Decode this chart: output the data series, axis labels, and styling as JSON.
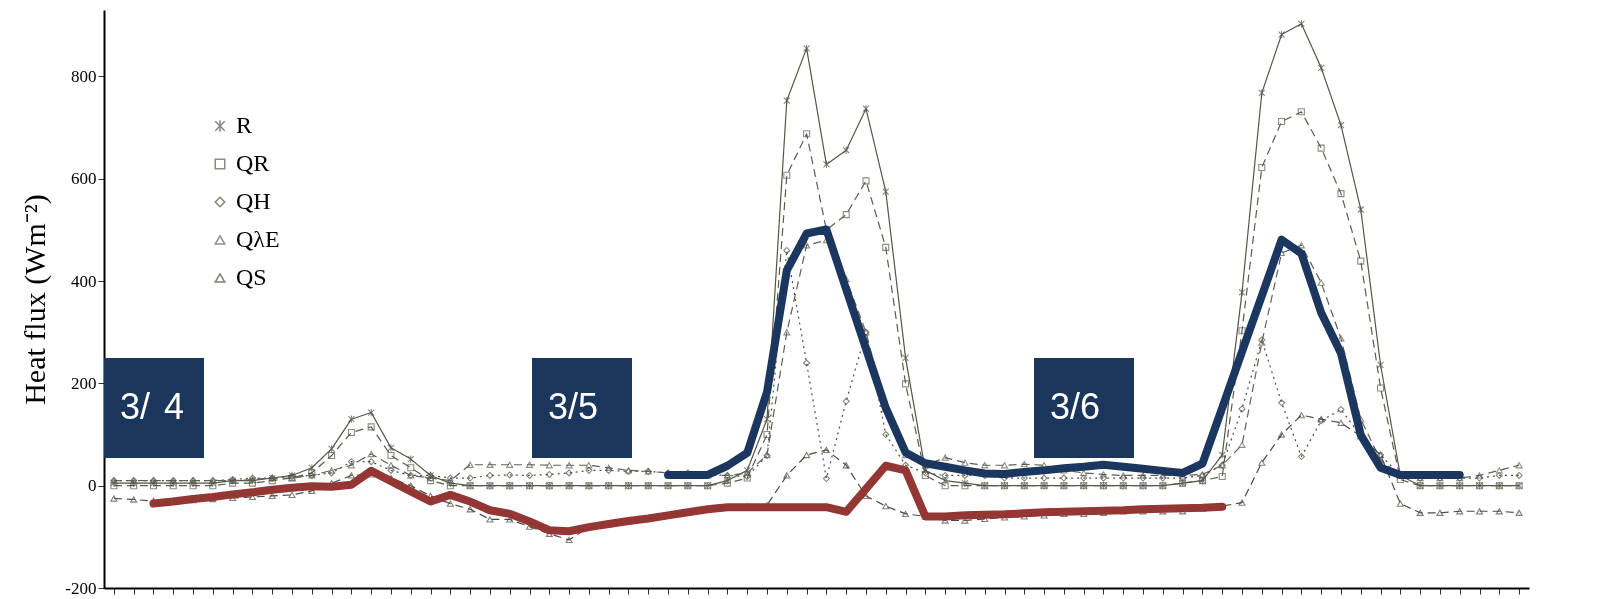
{
  "chart_data": {
    "type": "line",
    "ylabel": "Heat flux (Wm⁻²)",
    "categories": [
      null,
      null,
      null,
      null,
      null,
      null,
      null,
      null,
      null,
      null,
      null,
      null,
      null,
      null,
      null,
      null,
      null,
      null,
      null,
      null,
      null,
      null,
      null,
      null,
      null,
      null,
      null,
      null,
      null,
      null,
      null,
      null,
      null,
      null,
      null,
      null,
      null,
      null,
      null,
      null,
      null,
      null,
      null,
      null,
      null,
      null,
      null,
      null,
      null,
      null,
      null,
      null,
      null,
      null,
      null,
      null,
      null,
      null,
      null,
      null,
      null,
      null,
      null,
      null,
      null,
      null,
      null,
      null,
      null,
      null,
      null,
      null
    ],
    "series": [
      {
        "name": "R",
        "color": "#55554a",
        "marker": "cross",
        "line_style": "solid",
        "values": [
          5,
          5,
          5,
          5,
          5,
          5,
          10,
          10,
          15,
          20,
          35,
          72,
          130,
          143,
          74,
          52,
          20,
          5,
          0,
          0,
          0,
          0,
          0,
          0,
          0,
          0,
          0,
          0,
          0,
          0,
          0,
          10,
          30,
          130,
          753,
          855,
          628,
          656,
          737,
          575,
          250,
          30,
          10,
          5,
          0,
          0,
          0,
          0,
          0,
          0,
          0,
          0,
          0,
          0,
          5,
          10,
          60,
          378,
          768,
          882,
          903,
          817,
          705,
          540,
          236,
          20,
          0,
          0,
          0,
          0,
          0,
          0
        ]
      },
      {
        "name": "QR",
        "color": "#5b5b4e",
        "marker": "square",
        "line_style": "dashed",
        "values": [
          0,
          0,
          0,
          0,
          0,
          0,
          5,
          5,
          10,
          15,
          25,
          59,
          104,
          115,
          59,
          35,
          10,
          0,
          0,
          0,
          0,
          0,
          0,
          0,
          0,
          0,
          0,
          0,
          0,
          0,
          0,
          5,
          15,
          100,
          607,
          688,
          500,
          530,
          596,
          466,
          199,
          20,
          0,
          0,
          0,
          0,
          0,
          0,
          0,
          0,
          0,
          0,
          0,
          0,
          5,
          10,
          18,
          303,
          622,
          712,
          731,
          660,
          571,
          439,
          191,
          12,
          0,
          0,
          0,
          0,
          0,
          0
        ]
      },
      {
        "name": "QH",
        "color": "#4f4f45",
        "marker": "diamond",
        "line_style": "dotted",
        "values": [
          10,
          10,
          10,
          10,
          10,
          10,
          12,
          15,
          15,
          18,
          20,
          25,
          47,
          47,
          30,
          20,
          20,
          15,
          15,
          20,
          21,
          20,
          22,
          25,
          30,
          30,
          28,
          28,
          25,
          25,
          22,
          20,
          18,
          59,
          460,
          240,
          14,
          165,
          300,
          100,
          40,
          25,
          20,
          20,
          20,
          15,
          15,
          15,
          15,
          15,
          15,
          15,
          15,
          15,
          15,
          20,
          40,
          150,
          285,
          162,
          57,
          127,
          149,
          97,
          60,
          20,
          15,
          15,
          15,
          15,
          20,
          20
        ]
      },
      {
        "name": "QλE",
        "color": "#606054",
        "marker": "triangle",
        "line_style": "dashed",
        "values": [
          10,
          10,
          10,
          10,
          10,
          10,
          10,
          12,
          15,
          15,
          20,
          30,
          40,
          62,
          40,
          20,
          15,
          10,
          41,
          41,
          41,
          41,
          40,
          40,
          40,
          35,
          30,
          28,
          25,
          22,
          20,
          20,
          25,
          60,
          300,
          470,
          480,
          404,
          300,
          150,
          60,
          40,
          55,
          45,
          40,
          40,
          42,
          40,
          30,
          25,
          22,
          20,
          20,
          20,
          20,
          22,
          40,
          80,
          280,
          455,
          470,
          397,
          288,
          130,
          50,
          20,
          15,
          15,
          15,
          20,
          30,
          40
        ]
      },
      {
        "name": "QS",
        "color": "#4a4a40",
        "marker": "triangle",
        "line_style": "dashed",
        "values": [
          -25,
          -27,
          -30,
          -30,
          -28,
          -26,
          -24,
          -22,
          -20,
          -18,
          -10,
          5,
          20,
          22,
          15,
          0,
          -20,
          -35,
          -46,
          -66,
          -66,
          -80,
          -94,
          -106,
          -81,
          -75,
          -70,
          -65,
          -58,
          -52,
          -47,
          -43,
          -40,
          -38,
          20,
          60,
          70,
          40,
          -20,
          -40,
          -55,
          -60,
          -68,
          -68,
          -65,
          -62,
          -60,
          -58,
          -55,
          -55,
          -53,
          -50,
          -50,
          -50,
          -50,
          -45,
          -40,
          -33,
          45,
          100,
          138,
          130,
          123,
          97,
          60,
          -35,
          -53,
          -53,
          -50,
          -50,
          -50,
          -53
        ]
      },
      {
        "color": "#1b375f",
        "line_style": "solid",
        "values": [
          null,
          null,
          null,
          null,
          null,
          null,
          null,
          null,
          null,
          null,
          null,
          null,
          null,
          null,
          null,
          null,
          null,
          null,
          null,
          null,
          null,
          null,
          null,
          null,
          null,
          null,
          null,
          null,
          21,
          21,
          21,
          39,
          64,
          183,
          421,
          493,
          501,
          384,
          268,
          152,
          65,
          44,
          37,
          30,
          24,
          23,
          27,
          30,
          34,
          37,
          41,
          37,
          33,
          29,
          25,
          43,
          152,
          262,
          371,
          481,
          454,
          338,
          259,
          99,
          35,
          21,
          21,
          21,
          21,
          null,
          null,
          null
        ]
      },
      {
        "color": "#943634",
        "line_style": "solid",
        "values": [
          null,
          null,
          -35,
          -31,
          -26,
          -22,
          -17,
          -13,
          -8,
          -4,
          -1,
          -2,
          2,
          29,
          9,
          -11,
          -31,
          -18,
          -31,
          -48,
          -55,
          -70,
          -87,
          -89,
          -81,
          -75,
          -69,
          -64,
          -58,
          -52,
          -46,
          -42,
          -42,
          -42,
          -42,
          -42,
          -42,
          -51,
          -6,
          39,
          30,
          -60,
          -60,
          -58,
          -57,
          -56,
          -54,
          -52,
          -51,
          -50,
          -49,
          -48,
          -46,
          -45,
          -44,
          -43,
          -41,
          null,
          null,
          null,
          null,
          null,
          null,
          null,
          null,
          null,
          null,
          null,
          null,
          null,
          null,
          null
        ]
      }
    ],
    "ylim": [
      -200,
      930
    ],
    "yticks": [
      -200,
      0,
      200,
      400,
      600,
      800
    ],
    "grid": false,
    "legend": "top left",
    "annotations": [
      "3/",
      "4",
      "3/5",
      "3/6"
    ]
  }
}
